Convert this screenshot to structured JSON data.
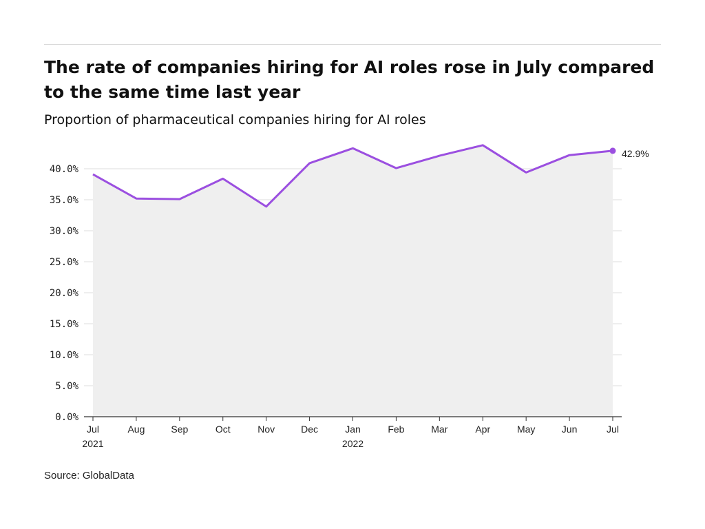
{
  "header": {
    "title": "The rate of companies hiring for AI roles rose in July compared to the same time last year",
    "subtitle": "Proportion of pharmaceutical companies hiring for AI roles"
  },
  "footer": {
    "source": "Source: GlobalData"
  },
  "colors": {
    "line": "#9b4fe0",
    "area": "#efefef",
    "grid": "#dddddd",
    "axis": "#333333"
  },
  "chart_data": {
    "type": "area",
    "categories": [
      "Jul",
      "Aug",
      "Sep",
      "Oct",
      "Nov",
      "Dec",
      "Jan",
      "Feb",
      "Mar",
      "Apr",
      "May",
      "Jun",
      "Jul"
    ],
    "year_labels": [
      "2021",
      "",
      "",
      "",
      "",
      "",
      "2022",
      "",
      "",
      "",
      "",
      "",
      ""
    ],
    "series": [
      {
        "values": [
          39.1,
          35.2,
          35.1,
          38.4,
          33.9,
          40.9,
          43.3,
          40.1,
          42.1,
          43.8,
          39.4,
          42.2,
          42.9
        ]
      }
    ],
    "ylim": [
      0,
      45
    ],
    "yticks": [
      0,
      5,
      10,
      15,
      20,
      25,
      30,
      35,
      40
    ],
    "ytick_labels": [
      "0.0%",
      "5.0%",
      "10.0%",
      "15.0%",
      "20.0%",
      "25.0%",
      "30.0%",
      "35.0%",
      "40.0%"
    ],
    "last_point_label": "42.9%",
    "grid": true
  }
}
